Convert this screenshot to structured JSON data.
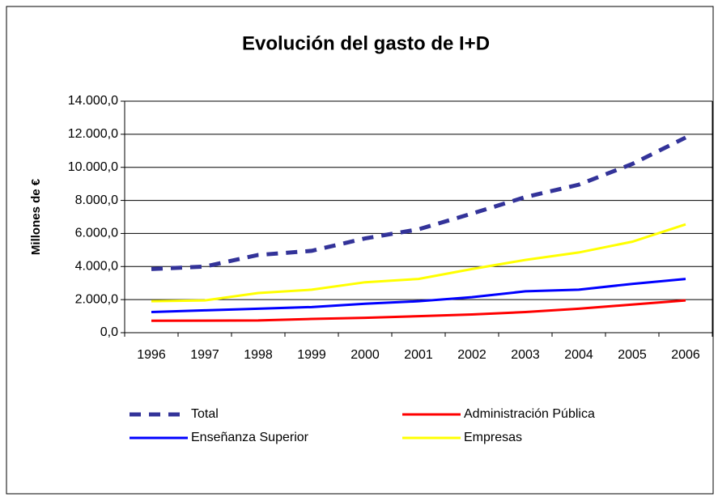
{
  "chart_data": {
    "type": "line",
    "title": "Evolución del gasto de I+D",
    "y_label": "Millones de €",
    "categories": [
      "1996",
      "1997",
      "1998",
      "1999",
      "2000",
      "2001",
      "2002",
      "2003",
      "2004",
      "2005",
      "2006"
    ],
    "series": [
      {
        "name": "Total",
        "color": "#333399",
        "line_style": "dashed",
        "values": [
          3850,
          4000,
          4700,
          4950,
          5700,
          6250,
          7200,
          8200,
          8950,
          10200,
          11800
        ]
      },
      {
        "name": "Administración Pública",
        "color": "#ff0000",
        "line_style": "solid",
        "values": [
          720,
          730,
          740,
          830,
          900,
          1000,
          1100,
          1250,
          1450,
          1700,
          1950
        ]
      },
      {
        "name": "Enseñanza Superior",
        "color": "#0000ff",
        "line_style": "solid",
        "values": [
          1250,
          1350,
          1450,
          1550,
          1750,
          1900,
          2150,
          2500,
          2600,
          2950,
          3250
        ]
      },
      {
        "name": "Empresas",
        "color": "#ffff00",
        "line_style": "solid",
        "values": [
          1900,
          1950,
          2400,
          2600,
          3050,
          3250,
          3850,
          4400,
          4850,
          5500,
          6550
        ]
      }
    ],
    "ylim": [
      0,
      14000
    ],
    "yticks": [
      {
        "value": 0,
        "label": "0,0"
      },
      {
        "value": 2000,
        "label": "2.000,0"
      },
      {
        "value": 4000,
        "label": "4.000,0"
      },
      {
        "value": 6000,
        "label": "6.000,0"
      },
      {
        "value": 8000,
        "label": "8.000,0"
      },
      {
        "value": 10000,
        "label": "10.000,0"
      },
      {
        "value": 12000,
        "label": "12.000,0"
      },
      {
        "value": 14000,
        "label": "14.000,0"
      }
    ],
    "grid": true,
    "legend": "bottom"
  }
}
